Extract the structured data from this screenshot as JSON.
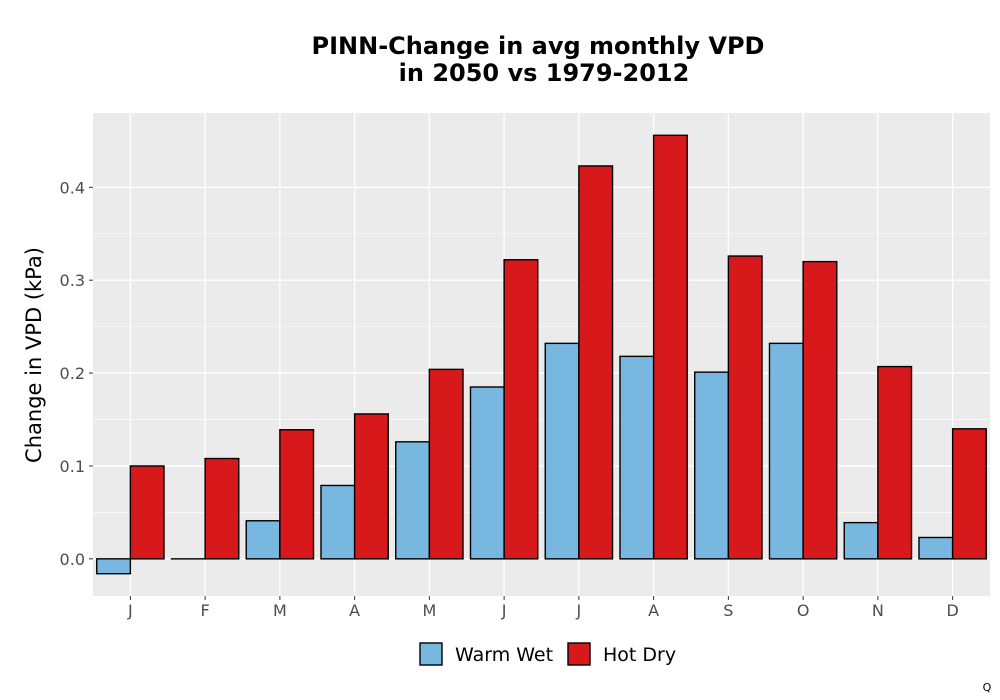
{
  "chart_data": {
    "type": "bar",
    "title_lines": [
      "PINN-Change in avg monthly VPD",
      "in 2050 vs 1979-2012"
    ],
    "xlabel": "",
    "ylabel": "Change in VPD (kPa)",
    "categories": [
      "J",
      "F",
      "M",
      "A",
      "M",
      "J",
      "J",
      "A",
      "S",
      "O",
      "N",
      "D"
    ],
    "series": [
      {
        "name": "Warm Wet",
        "color": "#77b7e0",
        "values": [
          -0.016,
          0.0,
          0.041,
          0.079,
          0.126,
          0.185,
          0.232,
          0.218,
          0.201,
          0.232,
          0.039,
          0.023
        ]
      },
      {
        "name": "Hot Dry",
        "color": "#d7191c",
        "values": [
          0.1,
          0.108,
          0.139,
          0.156,
          0.204,
          0.322,
          0.423,
          0.456,
          0.326,
          0.32,
          0.207,
          0.14
        ]
      }
    ],
    "ylim": [
      -0.04,
      0.48
    ],
    "yticks": [
      0.0,
      0.1,
      0.2,
      0.3,
      0.4
    ],
    "ytick_labels": [
      "0.0",
      "0.1",
      "0.2",
      "0.3",
      "0.4"
    ],
    "grid": true,
    "legend_position": "bottom",
    "panel_background": "#ebebeb"
  },
  "corner_label": "Q"
}
